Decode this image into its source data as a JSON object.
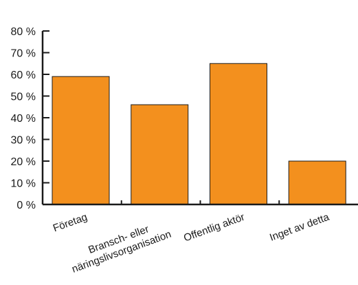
{
  "chart_data": {
    "type": "bar",
    "categories": [
      [
        "Företag"
      ],
      [
        "Bransch- eller",
        "näringslivsorganisation"
      ],
      [
        "Offentlig aktör"
      ],
      [
        "Inget av detta"
      ]
    ],
    "values": [
      59,
      46,
      65,
      20
    ],
    "ylim": [
      0,
      80
    ],
    "yticks": [
      0,
      10,
      20,
      30,
      40,
      50,
      60,
      70,
      80
    ],
    "ytick_labels": [
      "0 %",
      "10 %",
      "20 %",
      "30 %",
      "40 %",
      "50 %",
      "60 %",
      "70 %",
      "80 %"
    ],
    "bar_color": "#F3901E",
    "bar_edge_color": "#1a1a1a",
    "title": "",
    "xlabel": "",
    "ylabel": "",
    "grid": false,
    "legend": "none"
  }
}
